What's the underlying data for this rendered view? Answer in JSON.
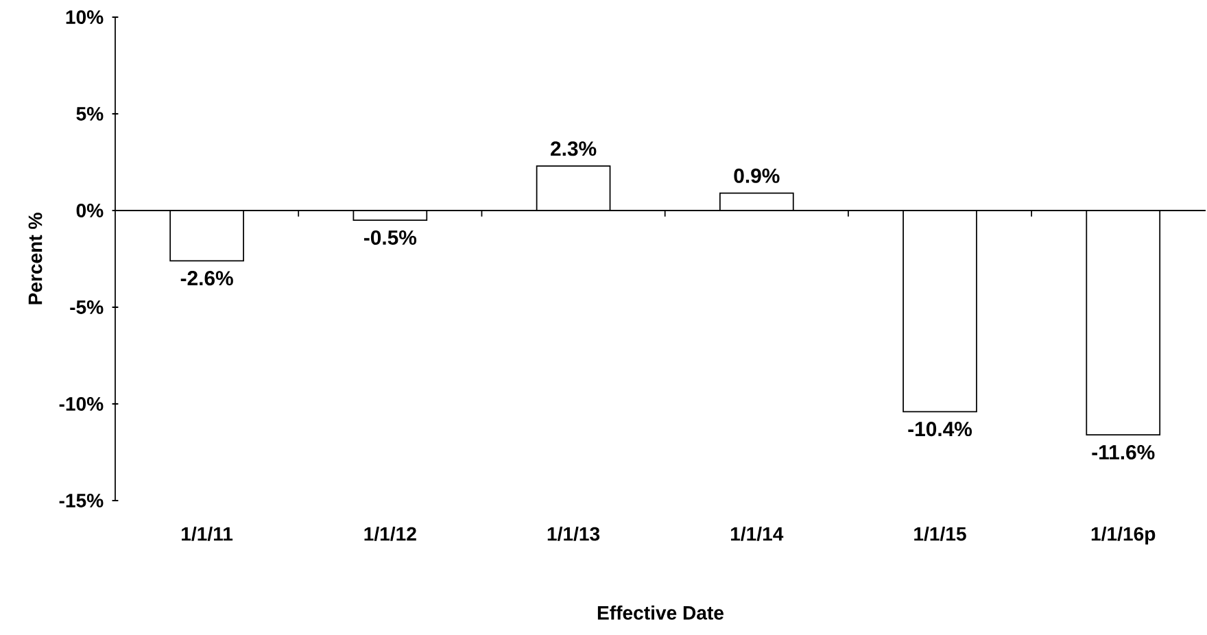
{
  "chart_data": {
    "type": "bar",
    "xlabel": "Effective Date",
    "ylabel": "Percent %",
    "categories": [
      "1/1/11",
      "1/1/12",
      "1/1/13",
      "1/1/14",
      "1/1/15",
      "1/1/16p"
    ],
    "values": [
      -2.6,
      -0.5,
      2.3,
      0.9,
      -10.4,
      -11.6
    ],
    "value_labels": [
      "-2.6%",
      "-0.5%",
      "2.3%",
      "0.9%",
      "-10.4%",
      "-11.6%"
    ],
    "color": "#ffffff",
    "ylim": [
      -15,
      10
    ],
    "yticks": [
      {
        "value": -15,
        "label": "-15%"
      },
      {
        "value": -10,
        "label": "-10%"
      },
      {
        "value": -5,
        "label": "-5%"
      },
      {
        "value": 0,
        "label": "0%"
      },
      {
        "value": 5,
        "label": "5%"
      },
      {
        "value": 10,
        "label": "10%"
      }
    ]
  }
}
